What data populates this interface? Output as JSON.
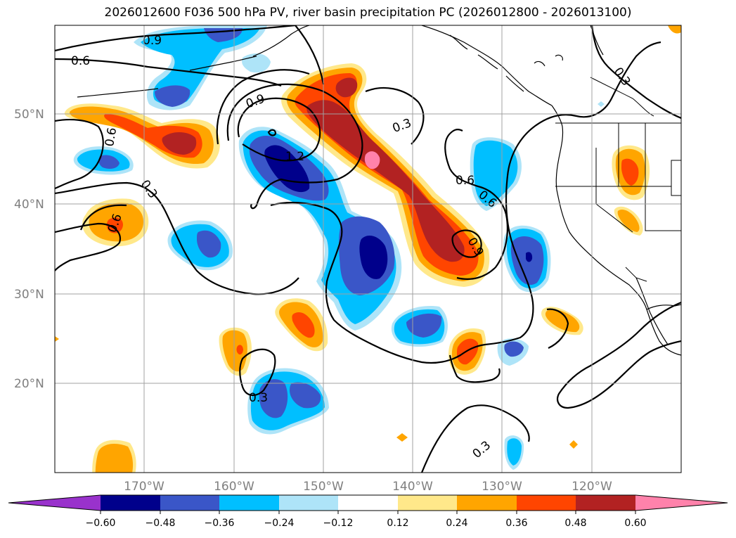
{
  "title": "2026012600 F036 500 hPa PV, river basin precipitation PC (2026012800 - 2026013100)",
  "lat_labels": [
    "50°N",
    "40°N",
    "30°N",
    "20°N"
  ],
  "lon_labels": [
    "170°W",
    "160°W",
    "150°W",
    "140°W",
    "130°W",
    "120°W"
  ],
  "contour_labels": [
    "0.9",
    "0.6",
    "0.9",
    "1.2",
    "0.3",
    "0.6",
    "0.3",
    "0.6",
    "0.6",
    "0.9",
    "0.3",
    "0.3",
    "0.3"
  ],
  "colorbar": {
    "labels": [
      "−0.60",
      "−0.48",
      "−0.36",
      "−0.24",
      "−0.12",
      "0.12",
      "0.24",
      "0.36",
      "0.48",
      "0.60"
    ],
    "colors": [
      "#9932cc",
      "#00008b",
      "#3a56c8",
      "#00bfff",
      "#aee4f8",
      "#ffffff",
      "#ffe88a",
      "#ffa500",
      "#ff4500",
      "#b22222",
      "#ff82ab"
    ]
  },
  "field_colors": {
    "neg_light": "#aee4f8",
    "neg_cyan": "#00bfff",
    "neg_blue": "#3a56c8",
    "neg_navy": "#00008b",
    "pos_yellow": "#ffe88a",
    "pos_orange": "#ffa500",
    "pos_red": "#ff4500",
    "pos_darkred": "#b22222",
    "pos_pink": "#ff82ab"
  }
}
